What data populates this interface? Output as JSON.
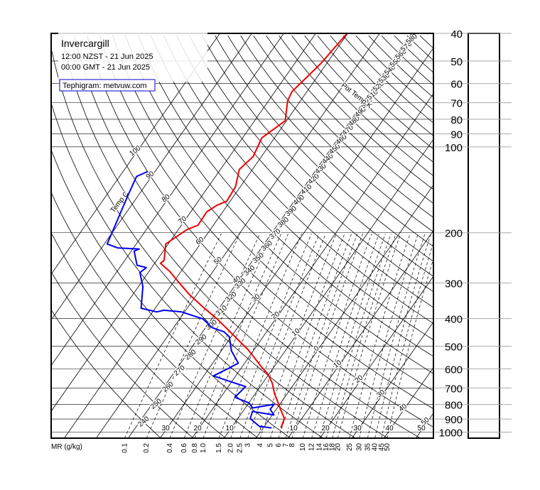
{
  "chart_data": {
    "type": "tephigram",
    "title": "Invercargill",
    "subtitle": [
      "12:00 NZST - 21 Jun 2025",
      "00:00 GMT - 21 Jun 2025"
    ],
    "credit": "Tephigram: metvuw.com",
    "theta_title": "Pot Temp K",
    "temp_title": "Temp C",
    "mr_title": "MR (g/kg)",
    "ylog": true,
    "ylim": [
      1050,
      40
    ],
    "yticks": [
      40,
      50,
      60,
      70,
      80,
      90,
      100,
      200,
      300,
      400,
      500,
      600,
      700,
      800,
      900,
      1000
    ],
    "temp_ticks": [
      {
        "value": -100,
        "label": "100"
      },
      {
        "value": -90,
        "label": "90"
      },
      {
        "value": -80,
        "label": "80"
      },
      {
        "value": -70,
        "label": "70"
      },
      {
        "value": -60,
        "label": "60"
      },
      {
        "value": -50,
        "label": "50"
      },
      {
        "value": -40,
        "label": "40"
      },
      {
        "value": -30,
        "label": "30"
      },
      {
        "value": -20,
        "label": "20"
      },
      {
        "value": -10,
        "label": "10"
      },
      0,
      10,
      20,
      30,
      40,
      50
    ],
    "theta_ticks": [
      240,
      250,
      260,
      270,
      280,
      290,
      300,
      310,
      320,
      330,
      340,
      350,
      360,
      370,
      380,
      390,
      400,
      410,
      420,
      430,
      440,
      450,
      460,
      470,
      480,
      490,
      500,
      510,
      520,
      530,
      540,
      550,
      560,
      570,
      580,
      590
    ],
    "mr_ticks": [
      0.1,
      0.2,
      0.4,
      0.6,
      0.8,
      {
        "value": 1,
        "label": "1.0"
      },
      1.5,
      {
        "value": 2,
        "label": "2.0"
      },
      2.5,
      3,
      4,
      5,
      6,
      7,
      8,
      10,
      12,
      14,
      16,
      18,
      20,
      25,
      30,
      35,
      40,
      45,
      50
    ],
    "series": [
      {
        "color": "#ee0000",
        "x": [
          966,
          897,
          837,
          777,
          733,
          673,
          624,
          593,
          550,
          513,
          476,
          437,
          401,
          364,
          328,
          296,
          273,
          256,
          250,
          219,
          195,
          188,
          169,
          160,
          155,
          138,
          120,
          108,
          93,
          81,
          69,
          64,
          51,
          40
        ],
        "values": [
          5.5,
          4.6,
          1.6,
          -1.5,
          -4.0,
          -7.0,
          -10.5,
          -13.7,
          -18.0,
          -22.0,
          -27.0,
          -32.6,
          -38.3,
          -45.4,
          -52.6,
          -58.8,
          -63.6,
          -68.2,
          -67.7,
          -70.8,
          -67.3,
          -64.8,
          -65.0,
          -63.2,
          -61.1,
          -61.5,
          -64.1,
          -62.6,
          -64.0,
          -60.4,
          -64.0,
          -64.7,
          -61.8,
          -60.2
        ]
      },
      {
        "color": "#0000ee",
        "x": [
          966,
          955,
          897,
          846,
          871,
          832,
          799,
          823,
          790,
          755,
          692,
          673,
          654,
          635,
          600,
          573,
          519,
          463,
          445,
          430,
          401,
          390,
          379,
          374,
          379,
          368,
          309,
          276,
          265,
          260,
          232,
          228,
          226,
          219,
          147,
          127,
          122
        ],
        "values": [
          2.6,
          -1.5,
          -6.1,
          -7.0,
          0.5,
          -1.9,
          -1.8,
          -7.7,
          -9.9,
          -15.6,
          -14.6,
          -18.7,
          -22.8,
          -27.0,
          -24.1,
          -22.0,
          -26.8,
          -30.6,
          -33.3,
          -38.0,
          -42.7,
          -46.8,
          -51.0,
          -56.8,
          -58.7,
          -64.4,
          -68.6,
          -72.6,
          -71.7,
          -75.1,
          -79.1,
          -78.0,
          -85.0,
          -89.1,
          -93.3,
          -94.7,
          -92.3
        ]
      }
    ]
  }
}
